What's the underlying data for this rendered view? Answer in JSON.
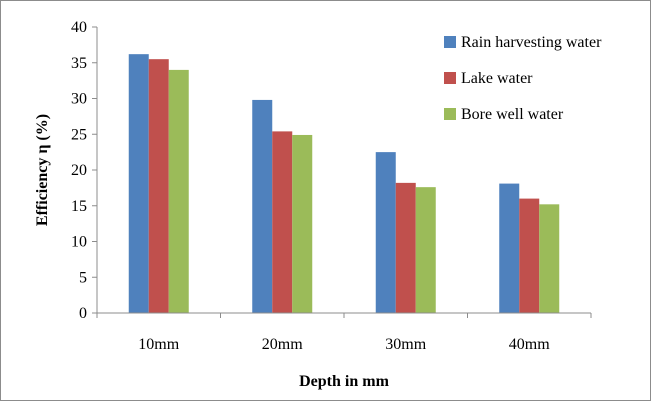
{
  "chart_data": {
    "type": "bar",
    "title": "",
    "xlabel": "Depth in mm",
    "ylabel": "Efficiency η (%)",
    "categories": [
      "10mm",
      "20mm",
      "30mm",
      "40mm"
    ],
    "ylim": [
      0,
      40
    ],
    "yticks": [
      0,
      5,
      10,
      15,
      20,
      25,
      30,
      35,
      40
    ],
    "grid": false,
    "legend_position": "top-right",
    "series": [
      {
        "name": "Rain harvesting water",
        "color": "#4f81bd",
        "values": [
          36.2,
          29.8,
          22.5,
          18.1
        ]
      },
      {
        "name": "Lake water",
        "color": "#c0504d",
        "values": [
          35.5,
          25.4,
          18.2,
          16.0
        ]
      },
      {
        "name": "Bore well water",
        "color": "#9bbb59",
        "values": [
          34.0,
          24.9,
          17.6,
          15.2
        ]
      }
    ]
  }
}
